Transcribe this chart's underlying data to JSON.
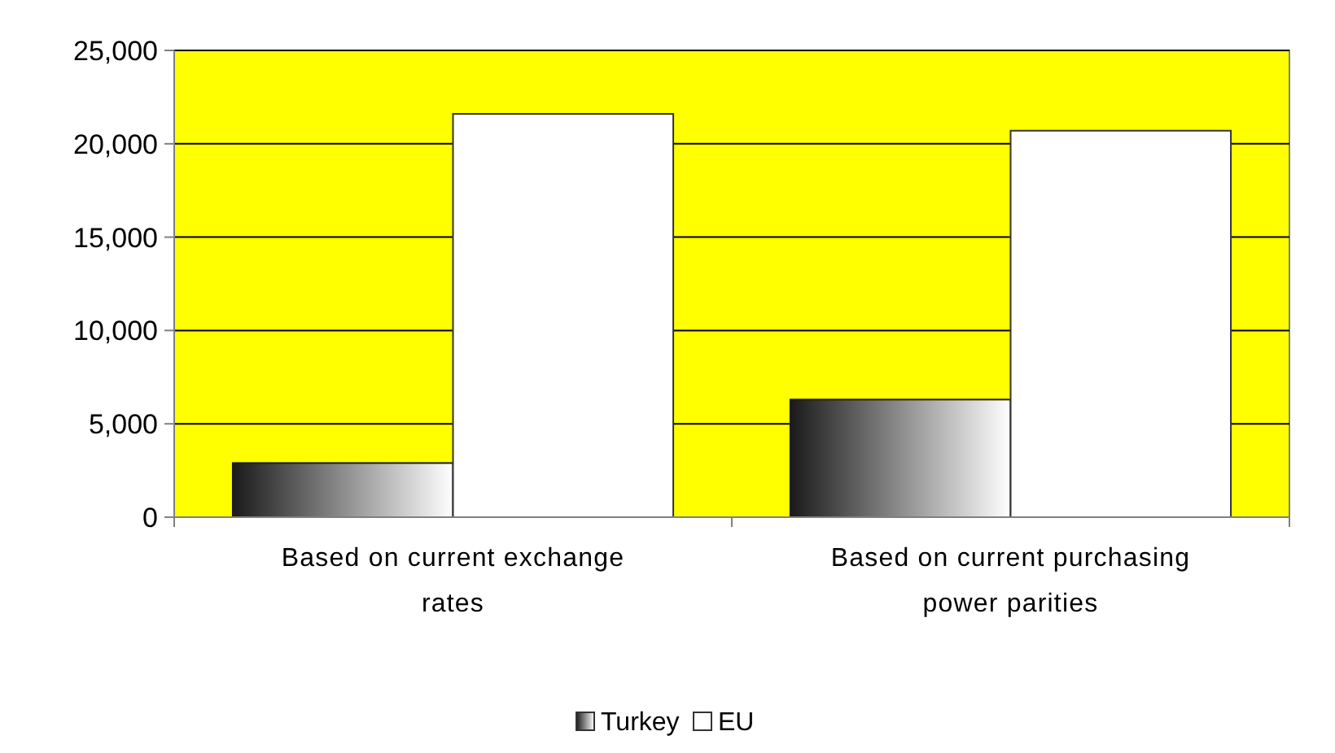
{
  "chart_data": {
    "type": "bar",
    "categories": [
      "Based on current exchange rates",
      "Based on current purchasing power parities"
    ],
    "series": [
      {
        "name": "Turkey",
        "color": "#1a1a1a",
        "values": [
          2900,
          6300
        ]
      },
      {
        "name": "EU",
        "color": "#ffffff",
        "values": [
          21600,
          20700
        ]
      }
    ],
    "ylim": [
      0,
      25000
    ],
    "yticks": [
      {
        "value": 0,
        "label": "0"
      },
      {
        "value": 5000,
        "label": "5,000"
      },
      {
        "value": 10000,
        "label": "10,000"
      },
      {
        "value": 15000,
        "label": "15,000"
      },
      {
        "value": 20000,
        "label": "20,000"
      },
      {
        "value": 25000,
        "label": "25,000"
      }
    ],
    "grid": "y",
    "legend": "bottom"
  }
}
